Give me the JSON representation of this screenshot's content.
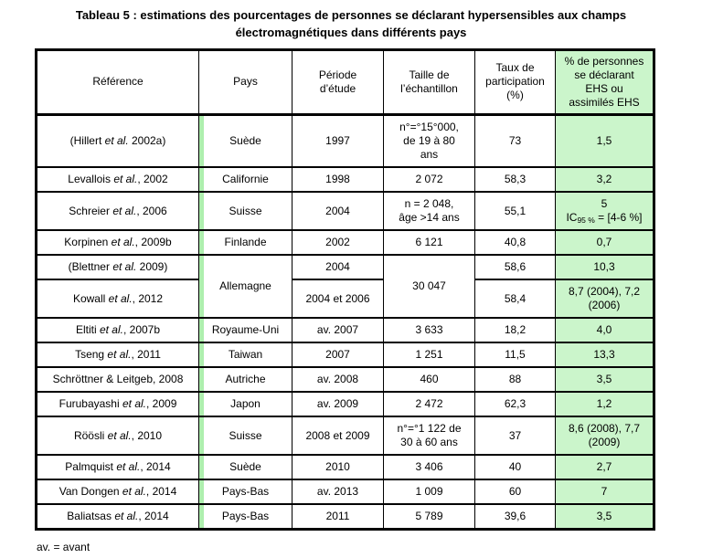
{
  "page": {
    "title": "Tableau 5 : estimations des pourcentages de personnes se déclarant hypersensibles aux champs électromagnétiques dans différents pays",
    "footnote": "av. = avant"
  },
  "colors": {
    "highlight_green": "#cbf5cb",
    "country_stripe_green": "#aeefae",
    "border": "#000000"
  },
  "table": {
    "headers": {
      "reference": "Référence",
      "country": "Pays",
      "period": "Période\nd’étude",
      "sample": "Taille de\nl’échantillon",
      "participation": "Taux de\nparticipation\n(%)",
      "ehs": "% de personnes\nse déclarant\nEHS ou\nassimilés EHS"
    },
    "rows": [
      {
        "reference": {
          "parts": [
            {
              "t": "(Hillert "
            },
            {
              "t": "et al.",
              "i": true
            },
            {
              "t": " 2002a)"
            }
          ]
        },
        "country": {
          "t": "Suède"
        },
        "period": {
          "t": "1997"
        },
        "sample": {
          "t": "n°=°15°000,\nde 19 à 80\nans"
        },
        "participation": {
          "t": "73"
        },
        "ehs": {
          "t": "1,5"
        }
      },
      {
        "reference": {
          "parts": [
            {
              "t": "Levallois "
            },
            {
              "t": "et al.",
              "i": true
            },
            {
              "t": ", 2002"
            }
          ]
        },
        "country": {
          "t": "Californie"
        },
        "period": {
          "t": "1998"
        },
        "sample": {
          "t": "2 072"
        },
        "participation": {
          "t": "58,3"
        },
        "ehs": {
          "t": "3,2"
        }
      },
      {
        "reference": {
          "parts": [
            {
              "t": "Schreier "
            },
            {
              "t": "et al.",
              "i": true
            },
            {
              "t": ", 2006"
            }
          ]
        },
        "country": {
          "t": "Suisse"
        },
        "period": {
          "t": "2004"
        },
        "sample": {
          "t": "n = 2 048,\nâge >14 ans"
        },
        "participation": {
          "t": "55,1"
        },
        "ehs": {
          "parts": [
            {
              "t": "5\n"
            },
            {
              "t": "IC"
            },
            {
              "t": "95 %",
              "sub": true
            },
            {
              "t": " = [4-6 %]"
            }
          ]
        }
      },
      {
        "reference": {
          "parts": [
            {
              "t": "Korpinen "
            },
            {
              "t": "et al.",
              "i": true
            },
            {
              "t": ", 2009b"
            }
          ]
        },
        "country": {
          "t": "Finlande"
        },
        "period": {
          "t": "2002"
        },
        "sample": {
          "t": "6 121"
        },
        "participation": {
          "t": "40,8"
        },
        "ehs": {
          "t": "0,7"
        }
      },
      {
        "reference": {
          "parts": [
            {
              "t": "(Blettner "
            },
            {
              "t": "et al.",
              "i": true
            },
            {
              "t": " 2009)"
            }
          ]
        },
        "country": {
          "t": "Allemagne",
          "rowspan": 2
        },
        "period": {
          "t": "2004"
        },
        "sample": {
          "t": "30 047",
          "rowspan": 2
        },
        "participation": {
          "t": "58,6"
        },
        "ehs": {
          "t": "10,3"
        }
      },
      {
        "reference": {
          "parts": [
            {
              "t": "Kowall "
            },
            {
              "t": "et al.",
              "i": true
            },
            {
              "t": ", 2012"
            }
          ]
        },
        "period": {
          "t": "2004 et 2006"
        },
        "participation": {
          "t": "58,4"
        },
        "ehs": {
          "t": "8,7 (2004), 7,2\n(2006)"
        }
      },
      {
        "reference": {
          "parts": [
            {
              "t": "Eltiti "
            },
            {
              "t": "et al.",
              "i": true
            },
            {
              "t": ", 2007b"
            }
          ]
        },
        "country": {
          "t": "Royaume-Uni"
        },
        "period": {
          "t": "av. 2007"
        },
        "sample": {
          "t": "3 633"
        },
        "participation": {
          "t": "18,2"
        },
        "ehs": {
          "t": "4,0"
        }
      },
      {
        "reference": {
          "parts": [
            {
              "t": "Tseng "
            },
            {
              "t": "et al.",
              "i": true
            },
            {
              "t": ", 2011"
            }
          ]
        },
        "country": {
          "t": "Taiwan"
        },
        "period": {
          "t": "2007"
        },
        "sample": {
          "t": "1 251"
        },
        "participation": {
          "t": "11,5"
        },
        "ehs": {
          "t": "13,3"
        }
      },
      {
        "reference": {
          "parts": [
            {
              "t": "Schröttner & Leitgeb, 2008"
            }
          ]
        },
        "country": {
          "t": "Autriche"
        },
        "period": {
          "t": "av. 2008"
        },
        "sample": {
          "t": "460"
        },
        "participation": {
          "t": "88"
        },
        "ehs": {
          "t": "3,5"
        }
      },
      {
        "reference": {
          "parts": [
            {
              "t": "Furubayashi "
            },
            {
              "t": "et al.",
              "i": true
            },
            {
              "t": ", 2009"
            }
          ]
        },
        "country": {
          "t": "Japon"
        },
        "period": {
          "t": "av. 2009"
        },
        "sample": {
          "t": "2 472"
        },
        "participation": {
          "t": "62,3"
        },
        "ehs": {
          "t": "1,2"
        }
      },
      {
        "reference": {
          "parts": [
            {
              "t": "Röösli "
            },
            {
              "t": "et al.",
              "i": true
            },
            {
              "t": ", 2010"
            }
          ]
        },
        "country": {
          "t": "Suisse"
        },
        "period": {
          "t": "2008 et 2009"
        },
        "sample": {
          "t": "n°=°1 122 de\n30 à 60 ans"
        },
        "participation": {
          "t": "37"
        },
        "ehs": {
          "t": "8,6 (2008), 7,7\n(2009)"
        }
      },
      {
        "reference": {
          "parts": [
            {
              "t": "Palmquist "
            },
            {
              "t": "et al.",
              "i": true
            },
            {
              "t": ", 2014"
            }
          ]
        },
        "country": {
          "t": "Suède"
        },
        "period": {
          "t": "2010"
        },
        "sample": {
          "t": "3 406"
        },
        "participation": {
          "t": "40"
        },
        "ehs": {
          "t": "2,7"
        }
      },
      {
        "reference": {
          "parts": [
            {
              "t": "Van Dongen "
            },
            {
              "t": "et al.",
              "i": true
            },
            {
              "t": ", 2014"
            }
          ]
        },
        "country": {
          "t": "Pays-Bas"
        },
        "period": {
          "t": "av. 2013"
        },
        "sample": {
          "t": "1 009"
        },
        "participation": {
          "t": "60"
        },
        "ehs": {
          "t": "7"
        }
      },
      {
        "reference": {
          "parts": [
            {
              "t": "Baliatsas "
            },
            {
              "t": "et al.",
              "i": true
            },
            {
              "t": ", 2014"
            }
          ]
        },
        "country": {
          "t": "Pays-Bas"
        },
        "period": {
          "t": "2011"
        },
        "sample": {
          "t": "5 789"
        },
        "participation": {
          "t": "39,6"
        },
        "ehs": {
          "t": "3,5"
        }
      }
    ]
  }
}
